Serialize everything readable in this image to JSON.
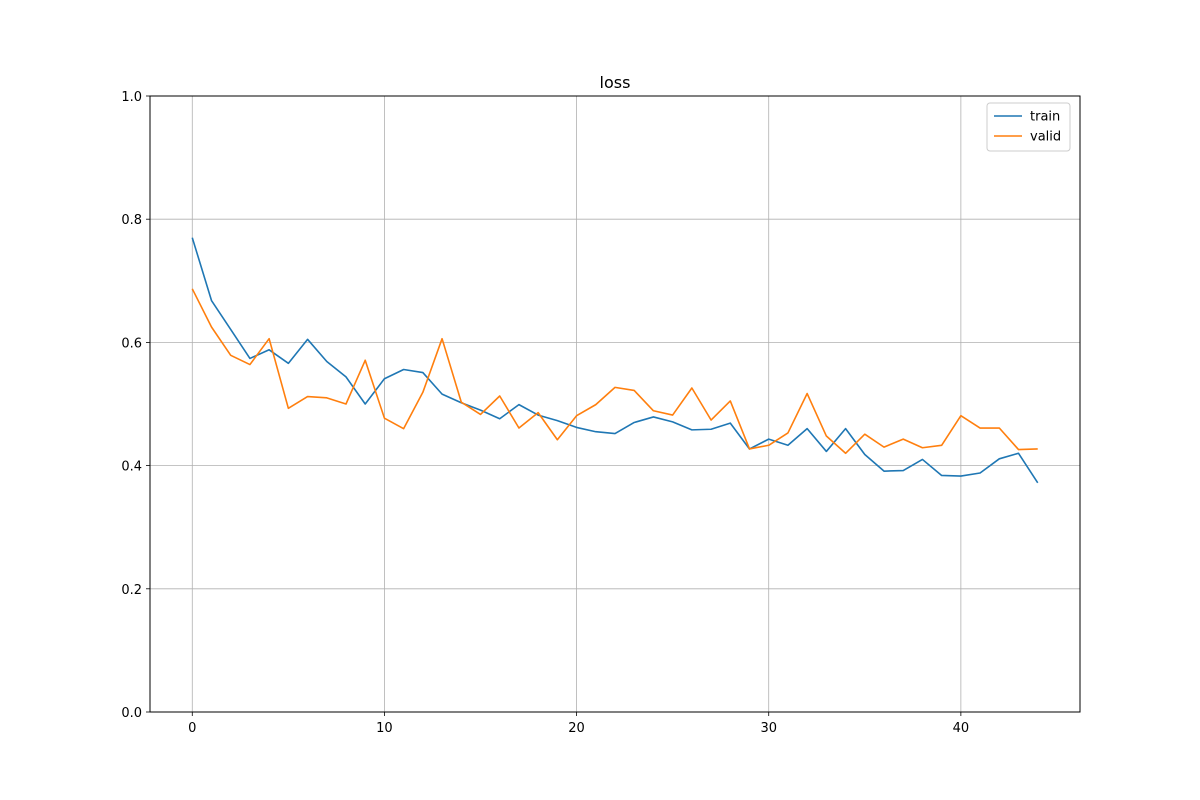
{
  "chart_data": {
    "type": "line",
    "title": "loss",
    "xlabel": "",
    "ylabel": "",
    "xlim": [
      -2.2,
      46.2
    ],
    "ylim": [
      0.0,
      1.0
    ],
    "xticks": [
      0,
      10,
      20,
      30,
      40
    ],
    "xtick_labels": [
      "0",
      "10",
      "20",
      "30",
      "40"
    ],
    "yticks": [
      0.0,
      0.2,
      0.4,
      0.6,
      0.8,
      1.0
    ],
    "ytick_labels": [
      "0.0",
      "0.2",
      "0.4",
      "0.6",
      "0.8",
      "1.0"
    ],
    "grid": true,
    "legend_position": "top-right",
    "x": [
      0,
      1,
      2,
      3,
      4,
      5,
      6,
      7,
      8,
      9,
      10,
      11,
      12,
      13,
      14,
      15,
      16,
      17,
      18,
      19,
      20,
      21,
      22,
      23,
      24,
      25,
      26,
      27,
      28,
      29,
      30,
      31,
      32,
      33,
      34,
      35,
      36,
      37,
      38,
      39,
      40,
      41,
      42,
      43,
      44
    ],
    "series": [
      {
        "name": "train",
        "color": "#1f77b4",
        "values": [
          0.77,
          0.668,
          0.621,
          0.574,
          0.588,
          0.566,
          0.605,
          0.569,
          0.544,
          0.5,
          0.541,
          0.556,
          0.551,
          0.516,
          0.502,
          0.49,
          0.476,
          0.499,
          0.482,
          0.473,
          0.462,
          0.455,
          0.452,
          0.47,
          0.479,
          0.471,
          0.458,
          0.459,
          0.469,
          0.427,
          0.443,
          0.433,
          0.46,
          0.423,
          0.46,
          0.418,
          0.391,
          0.392,
          0.41,
          0.384,
          0.383,
          0.388,
          0.411,
          0.42,
          0.372
        ]
      },
      {
        "name": "valid",
        "color": "#ff7f0e",
        "values": [
          0.687,
          0.625,
          0.579,
          0.564,
          0.606,
          0.493,
          0.512,
          0.51,
          0.5,
          0.571,
          0.477,
          0.46,
          0.519,
          0.606,
          0.503,
          0.483,
          0.513,
          0.461,
          0.486,
          0.442,
          0.481,
          0.499,
          0.527,
          0.522,
          0.489,
          0.482,
          0.526,
          0.474,
          0.505,
          0.427,
          0.433,
          0.453,
          0.517,
          0.448,
          0.42,
          0.451,
          0.43,
          0.443,
          0.429,
          0.433,
          0.481,
          0.461,
          0.461,
          0.426,
          0.427
        ]
      }
    ]
  }
}
